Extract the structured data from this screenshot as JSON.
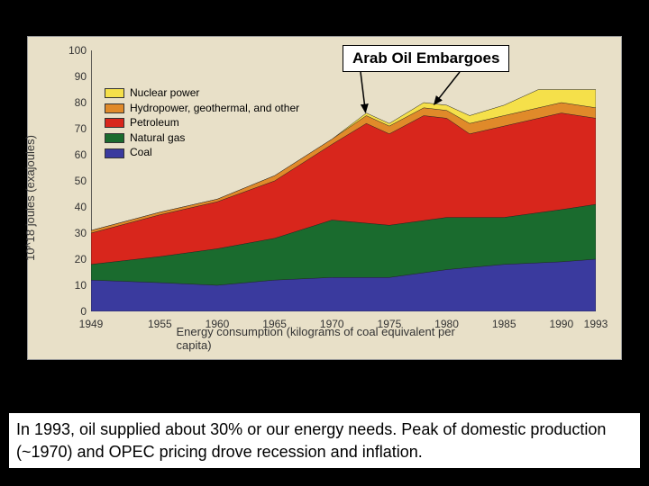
{
  "chart": {
    "type": "area",
    "background_color": "#e8e0c8",
    "plot_background": "#e8e0c8",
    "y_label": "10^18 joules (exajoules)",
    "x_label": "Energy consumption (kilograms of coal equivalent per capita)",
    "xlim": [
      1949,
      1993
    ],
    "ylim": [
      0,
      100
    ],
    "y_ticks": [
      0,
      10,
      20,
      30,
      40,
      50,
      60,
      70,
      80,
      90,
      100
    ],
    "x_ticks": [
      1949,
      1955,
      1960,
      1965,
      1970,
      1975,
      1980,
      1985,
      1990,
      1993
    ],
    "axis_color": "#333333",
    "tick_fontsize": 12,
    "label_fontsize": 13,
    "series": [
      {
        "name": "Coal",
        "color": "#3a3a9e",
        "cumulative": [
          [
            1949,
            12
          ],
          [
            1955,
            11
          ],
          [
            1960,
            10
          ],
          [
            1965,
            12
          ],
          [
            1970,
            13
          ],
          [
            1975,
            13
          ],
          [
            1980,
            16
          ],
          [
            1985,
            18
          ],
          [
            1990,
            19
          ],
          [
            1993,
            20
          ]
        ]
      },
      {
        "name": "Natural gas",
        "color": "#1a6b2e",
        "cumulative": [
          [
            1949,
            18
          ],
          [
            1955,
            21
          ],
          [
            1960,
            24
          ],
          [
            1965,
            28
          ],
          [
            1970,
            35
          ],
          [
            1975,
            33
          ],
          [
            1980,
            36
          ],
          [
            1985,
            36
          ],
          [
            1990,
            39
          ],
          [
            1993,
            41
          ]
        ]
      },
      {
        "name": "Petroleum",
        "color": "#d8261c",
        "cumulative": [
          [
            1949,
            30
          ],
          [
            1955,
            37
          ],
          [
            1960,
            42
          ],
          [
            1965,
            50
          ],
          [
            1970,
            64
          ],
          [
            1973,
            72
          ],
          [
            1975,
            68
          ],
          [
            1978,
            75
          ],
          [
            1980,
            74
          ],
          [
            1982,
            68
          ],
          [
            1985,
            71
          ],
          [
            1990,
            76
          ],
          [
            1993,
            74
          ]
        ]
      },
      {
        "name": "Hydropower, geothermal, and other",
        "color": "#e08a2a",
        "cumulative": [
          [
            1949,
            31
          ],
          [
            1955,
            38
          ],
          [
            1960,
            43
          ],
          [
            1965,
            52
          ],
          [
            1970,
            66
          ],
          [
            1973,
            75
          ],
          [
            1975,
            71
          ],
          [
            1978,
            78
          ],
          [
            1980,
            77
          ],
          [
            1982,
            72
          ],
          [
            1985,
            75
          ],
          [
            1990,
            80
          ],
          [
            1993,
            78
          ]
        ]
      },
      {
        "name": "Nuclear power",
        "color": "#f5e04a",
        "cumulative": [
          [
            1949,
            31
          ],
          [
            1955,
            38
          ],
          [
            1960,
            43
          ],
          [
            1965,
            52
          ],
          [
            1970,
            66
          ],
          [
            1973,
            76
          ],
          [
            1975,
            72
          ],
          [
            1978,
            80
          ],
          [
            1980,
            79
          ],
          [
            1982,
            75
          ],
          [
            1985,
            79
          ],
          [
            1988,
            85
          ],
          [
            1990,
            85
          ],
          [
            1993,
            85
          ]
        ]
      }
    ],
    "legend": {
      "position": "upper-left",
      "fontsize": 12,
      "items": [
        {
          "label": "Nuclear power",
          "color": "#f5e04a"
        },
        {
          "label": "Hydropower, geothermal, and other",
          "color": "#e08a2a"
        },
        {
          "label": "Petroleum",
          "color": "#d8261c"
        },
        {
          "label": "Natural gas",
          "color": "#1a6b2e"
        },
        {
          "label": "Coal",
          "color": "#3a3a9e"
        }
      ]
    }
  },
  "annotation": {
    "text": "Arab Oil Embargoes",
    "box_bg": "#ffffff",
    "box_border": "#000000",
    "fontsize": 17,
    "arrows": [
      {
        "to_year": 1973,
        "to_value": 75
      },
      {
        "to_year": 1979,
        "to_value": 78
      }
    ]
  },
  "caption": {
    "text": "In 1993, oil supplied about 30% or our energy needs. Peak of domestic production (~1970) and OPEC pricing drove recession and inflation.",
    "fontsize": 18,
    "color": "#000000",
    "background": "#ffffff"
  },
  "page_background": "#000000"
}
